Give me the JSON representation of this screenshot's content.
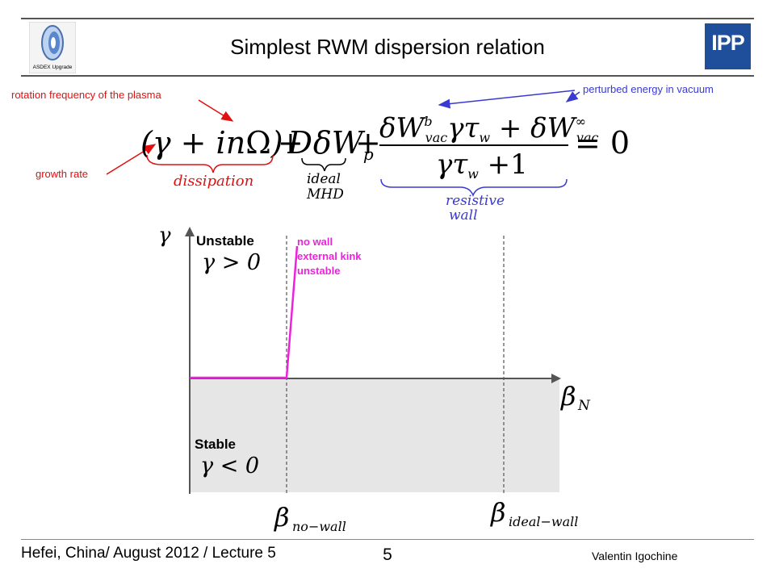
{
  "header": {
    "title": "Simplest RWM dispersion relation",
    "logo_left_text": "ASDEX Upgrade",
    "logo_right_text": "IPP"
  },
  "annotations": {
    "rotation": "rotation frequency of the plasma",
    "growth": "growth rate",
    "vacuum": "perturbed energy in vacuum"
  },
  "formula": {
    "dissipation": "dissipation",
    "ideal": "ideal",
    "mhd": "MHD",
    "resistive": "resistive",
    "wall": "wall"
  },
  "diagram": {
    "y_axis_symbol": "γ",
    "x_axis_symbol": "β",
    "x_axis_subscript": "N",
    "unstable_label": "Unstable",
    "unstable_condition": "γ > 0",
    "stable_label": "Stable",
    "stable_condition": "γ < 0",
    "curve_label_lines": [
      "no wall",
      "external kink",
      "unstable"
    ],
    "beta_no_wall_sub": "no−wall",
    "beta_ideal_wall_sub": "ideal−wall",
    "colors": {
      "curve": "#ee22dd",
      "stable_region": "#e6e6e6",
      "red": "#e01010",
      "blue": "#3a3ad0"
    }
  },
  "footer": {
    "left": "Hefei, China/ August 2012 / Lecture 5",
    "page": "5",
    "author": "Valentin Igochine"
  }
}
